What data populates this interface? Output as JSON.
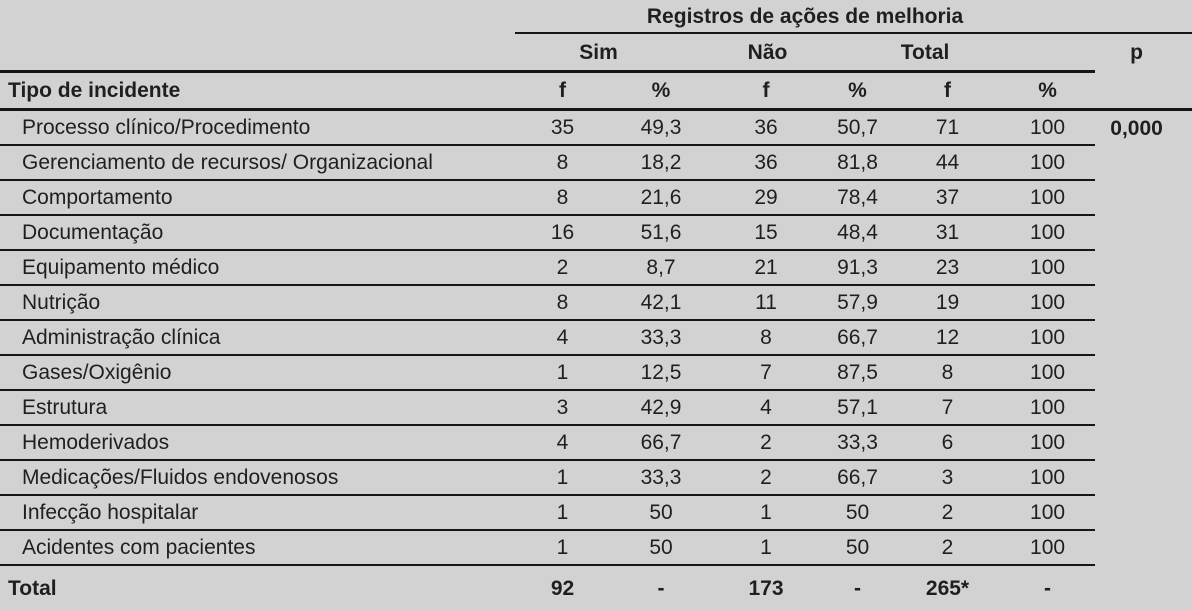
{
  "colors": {
    "page_background": "#d2d2d2",
    "rule_lines": "#161616",
    "text": "#1f1f1f"
  },
  "table": {
    "spanner_title": "Registros de ações de melhoria",
    "row_header": "Tipo de incidente",
    "groups": {
      "yes": "Sim",
      "no": "Não",
      "total": "Total",
      "p": "p"
    },
    "sub_headers": {
      "f": "f",
      "pct": "%"
    },
    "rows": [
      {
        "label": "Processo clínico/Procedimento",
        "values": [
          "35",
          "49,3",
          "36",
          "50,7",
          "71",
          "100"
        ],
        "p": "0,000"
      },
      {
        "label": "Gerenciamento de recursos/ Organizacional",
        "values": [
          "8",
          "18,2",
          "36",
          "81,8",
          "44",
          "100"
        ],
        "p": ""
      },
      {
        "label": "Comportamento",
        "values": [
          "8",
          "21,6",
          "29",
          "78,4",
          "37",
          "100"
        ],
        "p": ""
      },
      {
        "label": "Documentação",
        "values": [
          "16",
          "51,6",
          "15",
          "48,4",
          "31",
          "100"
        ],
        "p": ""
      },
      {
        "label": "Equipamento médico",
        "values": [
          "2",
          "8,7",
          "21",
          "91,3",
          "23",
          "100"
        ],
        "p": ""
      },
      {
        "label": "Nutrição",
        "values": [
          "8",
          "42,1",
          "11",
          "57,9",
          "19",
          "100"
        ],
        "p": ""
      },
      {
        "label": "Administração clínica",
        "values": [
          "4",
          "33,3",
          "8",
          "66,7",
          "12",
          "100"
        ],
        "p": ""
      },
      {
        "label": "Gases/Oxigênio",
        "values": [
          "1",
          "12,5",
          "7",
          "87,5",
          "8",
          "100"
        ],
        "p": ""
      },
      {
        "label": "Estrutura",
        "values": [
          "3",
          "42,9",
          "4",
          "57,1",
          "7",
          "100"
        ],
        "p": ""
      },
      {
        "label": "Hemoderivados",
        "values": [
          "4",
          "66,7",
          "2",
          "33,3",
          "6",
          "100"
        ],
        "p": ""
      },
      {
        "label": "Medicações/Fluidos endovenosos",
        "values": [
          "1",
          "33,3",
          "2",
          "66,7",
          "3",
          "100"
        ],
        "p": ""
      },
      {
        "label": "Infecção hospitalar",
        "values": [
          "1",
          "50",
          "1",
          "50",
          "2",
          "100"
        ],
        "p": ""
      },
      {
        "label": "Acidentes com pacientes",
        "values": [
          "1",
          "50",
          "1",
          "50",
          "2",
          "100"
        ],
        "p": ""
      }
    ],
    "total_row": {
      "label": "Total",
      "values": [
        "92",
        "-",
        "173",
        "-",
        "265*",
        "-"
      ],
      "p": ""
    }
  }
}
